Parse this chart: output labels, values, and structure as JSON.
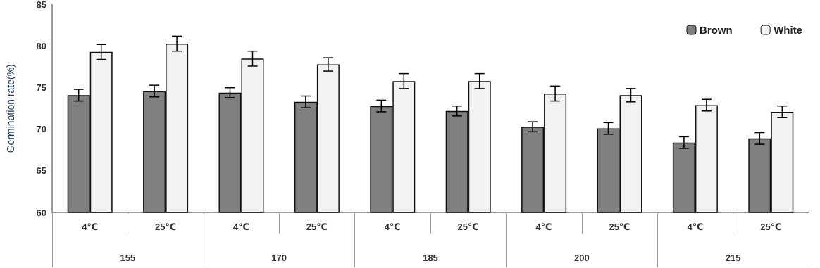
{
  "chart_data": {
    "type": "bar",
    "ylabel": "Germination rate(%)",
    "categories": [
      "4℃",
      "25℃",
      "4℃",
      "25℃",
      "4℃",
      "25℃",
      "4℃",
      "25℃",
      "4℃",
      "25℃"
    ],
    "annotations": [
      "155",
      "170",
      "185",
      "200",
      "215"
    ],
    "series": [
      {
        "name": "Brown",
        "color": "#7f7f7f",
        "values": [
          74.1,
          74.6,
          74.4,
          73.3,
          72.8,
          72.2,
          70.3,
          70.1,
          68.4,
          68.9
        ],
        "errors": [
          0.7,
          0.7,
          0.6,
          0.7,
          0.7,
          0.6,
          0.6,
          0.7,
          0.7,
          0.7
        ]
      },
      {
        "name": "White",
        "color": "#f2f2f2",
        "values": [
          79.3,
          80.3,
          78.5,
          77.8,
          75.8,
          75.8,
          74.3,
          74.1,
          72.9,
          72.1
        ],
        "errors": [
          0.9,
          0.9,
          0.9,
          0.8,
          0.9,
          0.9,
          0.9,
          0.8,
          0.7,
          0.7
        ]
      }
    ],
    "ylim": [
      60,
      85
    ],
    "yticks": [
      60,
      65,
      70,
      75,
      80,
      85
    ],
    "grid": false,
    "legend": "top right"
  }
}
